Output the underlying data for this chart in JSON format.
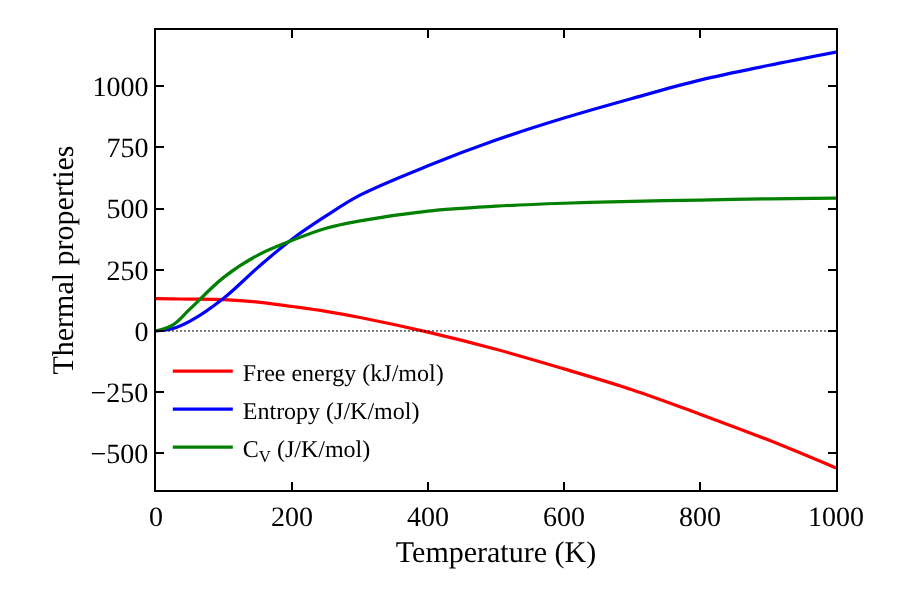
{
  "chart_data": {
    "type": "line",
    "xlabel": "Temperature (K)",
    "ylabel": "Thermal properties",
    "x": [
      0,
      25,
      50,
      100,
      150,
      200,
      250,
      300,
      400,
      500,
      600,
      700,
      800,
      900,
      1000
    ],
    "series": [
      {
        "name": "Free energy (kJ/mol)",
        "color": "#ff0000",
        "values": [
          132,
          131,
          130,
          128,
          118,
          100,
          80,
          55,
          -5,
          -75,
          -155,
          -240,
          -340,
          -445,
          -560
        ]
      },
      {
        "name": "Entropy (J/K/mol)",
        "color": "#0000ff",
        "values": [
          0,
          10,
          40,
          135,
          260,
          375,
          470,
          555,
          675,
          780,
          870,
          950,
          1025,
          1085,
          1140
        ]
      },
      {
        "name": "C$_{V}$ (J/K/mol)",
        "color": "#008000",
        "values": [
          0,
          25,
          90,
          220,
          310,
          370,
          420,
          450,
          490,
          510,
          522,
          530,
          535,
          540,
          543
        ]
      }
    ],
    "xlim": [
      0,
      1000
    ],
    "xticks": [
      0,
      200,
      400,
      600,
      800,
      1000
    ],
    "ylim": [
      -650,
      1230
    ],
    "yticks": [
      -500,
      -250,
      0,
      250,
      500,
      750,
      1000
    ],
    "ref_lines": [
      {
        "axis": "y",
        "value": 0,
        "color": "#000000",
        "line_style": "dotted"
      }
    ],
    "legend": "bottom left",
    "marker": "none",
    "line_style": "solid"
  }
}
